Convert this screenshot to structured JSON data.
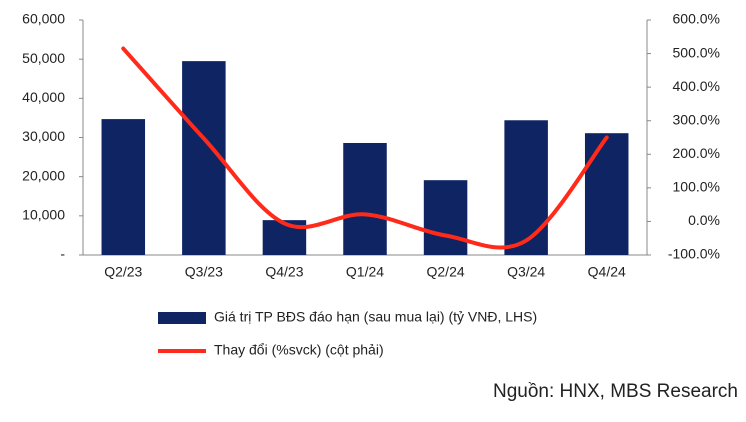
{
  "chart_data": {
    "type": "bar-line",
    "categories": [
      "Q2/23",
      "Q3/23",
      "Q4/23",
      "Q1/24",
      "Q2/24",
      "Q3/24",
      "Q4/24"
    ],
    "series": [
      {
        "name": "Giá trị TP BĐS đáo hạn (sau mua lại) (tỷ VNĐ, LHS)",
        "type": "bar",
        "color": "#0e2463",
        "values": [
          34700,
          49500,
          8900,
          28600,
          19100,
          34400,
          31100
        ]
      },
      {
        "name": "Thay đổi (%svck) (cột phải)",
        "type": "line",
        "axis": "y2",
        "color": "#ff2a1a",
        "values": [
          515,
          247,
          -6,
          21,
          -42,
          -57,
          250
        ]
      }
    ],
    "ylim": [
      0,
      60000
    ],
    "yticks": [
      {
        "value": 0,
        "label": "-"
      },
      {
        "value": 10000,
        "label": "10,000"
      },
      {
        "value": 20000,
        "label": "20,000"
      },
      {
        "value": 30000,
        "label": "30,000"
      },
      {
        "value": 40000,
        "label": "40,000"
      },
      {
        "value": 50000,
        "label": "50,000"
      },
      {
        "value": 60000,
        "label": "60,000"
      }
    ],
    "y2lim": [
      -100,
      600
    ],
    "y2ticks": [
      {
        "value": -100,
        "label": "-100.0%"
      },
      {
        "value": 0,
        "label": "0.0%"
      },
      {
        "value": 100,
        "label": "100.0%"
      },
      {
        "value": 200,
        "label": "200.0%"
      },
      {
        "value": 300,
        "label": "300.0%"
      },
      {
        "value": 400,
        "label": "400.0%"
      },
      {
        "value": 500,
        "label": "500.0%"
      },
      {
        "value": 600,
        "label": "600.0%"
      }
    ],
    "source": "Nguồn: HNX, MBS Research"
  }
}
